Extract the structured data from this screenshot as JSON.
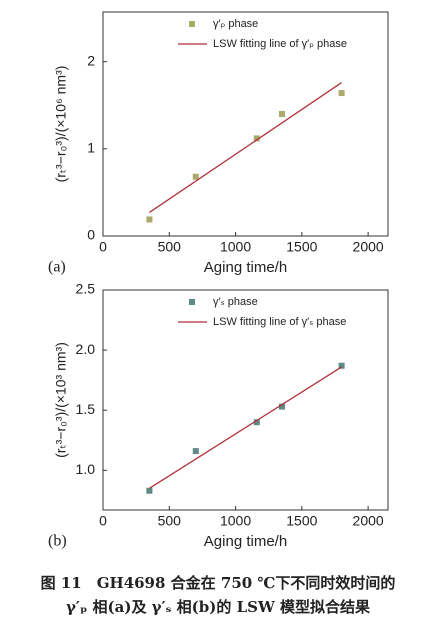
{
  "chart_data": [
    {
      "type": "scatter",
      "panel": "(a)",
      "xlabel": "Aging time/h",
      "ylabel": "(rₜ³−r₀³)/(×10⁶ nm³)",
      "xlim": [
        0,
        2150
      ],
      "xticks": [
        0,
        500,
        1000,
        1500,
        2000
      ],
      "ylim": [
        0,
        2.57
      ],
      "yticks": [
        0,
        1,
        2
      ],
      "series": [
        {
          "name": "γ′ₚ phase",
          "style": "marker",
          "color": "#a9a96a",
          "x": [
            350,
            700,
            1160,
            1350,
            1800
          ],
          "values": [
            0.19,
            0.68,
            1.12,
            1.4,
            1.64
          ]
        },
        {
          "name": "LSW fitting line of γ′ₚ phase",
          "style": "line",
          "color": "#b0303a",
          "x": [
            350,
            1800
          ],
          "values": [
            0.27,
            1.76
          ]
        }
      ]
    },
    {
      "type": "scatter",
      "panel": "(b)",
      "xlabel": "Aging time/h",
      "ylabel": "(rₜ³−r₀³)/(×10³ nm³)",
      "xlim": [
        0,
        2150
      ],
      "xticks": [
        0,
        500,
        1000,
        1500,
        2000
      ],
      "ylim": [
        0.67,
        2.5
      ],
      "yticks": [
        {
          "value": 1,
          "label": "1.0"
        },
        {
          "value": 1.5,
          "label": "1.5"
        },
        {
          "value": 2,
          "label": "2.0"
        },
        {
          "value": 2.5,
          "label": "2.5"
        }
      ],
      "series": [
        {
          "name": "γ′ₛ phase",
          "style": "marker",
          "color": "#5f8a86",
          "x": [
            350,
            700,
            1160,
            1350,
            1800
          ],
          "values": [
            0.83,
            1.16,
            1.4,
            1.53,
            1.87
          ]
        },
        {
          "name": "LSW fitting line of γ′ₛ phase",
          "style": "line",
          "color": "#b0303a",
          "x": [
            350,
            1800
          ],
          "values": [
            0.85,
            1.86
          ]
        }
      ]
    }
  ],
  "caption": {
    "line1": "图 11　GH4698 合金在 750 ℃下不同时效时间的",
    "line2": "γ′ₚ 相(a)及 γ′ₛ 相(b)的 LSW 模型拟合结果"
  }
}
